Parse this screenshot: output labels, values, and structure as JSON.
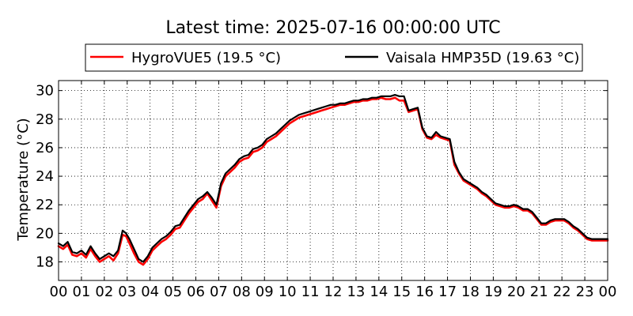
{
  "chart_data": {
    "type": "line",
    "title": "Latest time: 2025-07-16 00:00:00 UTC",
    "xlabel": "",
    "ylabel": "Temperature (°C)",
    "xlim": [
      0,
      24
    ],
    "ylim": [
      16.7,
      30.7
    ],
    "x_ticks": [
      "00",
      "01",
      "02",
      "03",
      "04",
      "05",
      "06",
      "07",
      "08",
      "09",
      "10",
      "11",
      "12",
      "13",
      "14",
      "15",
      "16",
      "17",
      "18",
      "19",
      "20",
      "21",
      "22",
      "23",
      "00"
    ],
    "y_ticks": [
      18,
      20,
      22,
      24,
      26,
      28,
      30
    ],
    "grid": true,
    "legend": "top",
    "series": [
      {
        "name": "HygroVUE5 (19.5 °C)",
        "color": "#ff0000",
        "x": [
          0,
          0.2,
          0.4,
          0.6,
          0.8,
          1.0,
          1.2,
          1.4,
          1.6,
          1.8,
          2.0,
          2.2,
          2.4,
          2.6,
          2.8,
          2.95,
          3.1,
          3.3,
          3.5,
          3.7,
          3.9,
          4.1,
          4.3,
          4.5,
          4.7,
          4.9,
          5.1,
          5.3,
          5.5,
          5.7,
          5.9,
          6.1,
          6.3,
          6.5,
          6.7,
          6.9,
          7.1,
          7.3,
          7.5,
          7.7,
          7.9,
          8.1,
          8.3,
          8.5,
          8.7,
          8.9,
          9.1,
          9.3,
          9.5,
          9.7,
          9.9,
          10.1,
          10.3,
          10.5,
          10.7,
          10.9,
          11.1,
          11.3,
          11.5,
          11.7,
          11.9,
          12.1,
          12.3,
          12.5,
          12.7,
          12.9,
          13.1,
          13.3,
          13.5,
          13.7,
          13.9,
          14.1,
          14.3,
          14.5,
          14.7,
          14.9,
          15.1,
          15.3,
          15.5,
          15.7,
          15.9,
          16.1,
          16.3,
          16.5,
          16.7,
          16.9,
          17.1,
          17.3,
          17.5,
          17.7,
          17.9,
          18.1,
          18.3,
          18.5,
          18.7,
          18.9,
          19.1,
          19.3,
          19.5,
          19.7,
          19.9,
          20.1,
          20.3,
          20.5,
          20.7,
          20.9,
          21.1,
          21.3,
          21.5,
          21.7,
          21.9,
          22.1,
          22.3,
          22.5,
          22.7,
          22.9,
          23.1,
          23.3,
          23.5,
          23.7,
          23.9,
          24.0
        ],
        "values": [
          19.1,
          18.9,
          19.2,
          18.5,
          18.4,
          18.6,
          18.3,
          18.9,
          18.4,
          18.0,
          18.2,
          18.4,
          18.1,
          18.6,
          19.9,
          19.8,
          19.3,
          18.6,
          18.0,
          17.8,
          18.2,
          18.8,
          19.1,
          19.4,
          19.6,
          19.9,
          20.3,
          20.4,
          20.9,
          21.4,
          21.8,
          22.2,
          22.4,
          22.8,
          22.3,
          21.8,
          23.3,
          24.0,
          24.3,
          24.6,
          25.0,
          25.2,
          25.3,
          25.7,
          25.8,
          26.0,
          26.4,
          26.6,
          26.8,
          27.1,
          27.4,
          27.7,
          27.9,
          28.1,
          28.2,
          28.3,
          28.4,
          28.5,
          28.6,
          28.7,
          28.8,
          28.9,
          29.0,
          29.0,
          29.1,
          29.2,
          29.2,
          29.3,
          29.3,
          29.4,
          29.4,
          29.5,
          29.4,
          29.4,
          29.5,
          29.3,
          29.3,
          28.5,
          28.6,
          28.7,
          27.3,
          26.7,
          26.6,
          26.9,
          26.7,
          26.6,
          26.5,
          24.8,
          24.2,
          23.7,
          23.5,
          23.3,
          23.1,
          22.8,
          22.6,
          22.3,
          22.0,
          21.9,
          21.8,
          21.8,
          21.9,
          21.8,
          21.6,
          21.6,
          21.4,
          21.0,
          20.6,
          20.6,
          20.8,
          20.9,
          20.9,
          20.9,
          20.7,
          20.4,
          20.2,
          19.9,
          19.6,
          19.5,
          19.5,
          19.5,
          19.5,
          19.5
        ]
      },
      {
        "name": "Vaisala HMP35D (19.63 °C)",
        "color": "#000000",
        "x": [
          0,
          0.2,
          0.4,
          0.6,
          0.8,
          1.0,
          1.2,
          1.4,
          1.6,
          1.8,
          2.0,
          2.2,
          2.4,
          2.6,
          2.8,
          2.95,
          3.1,
          3.3,
          3.5,
          3.7,
          3.9,
          4.1,
          4.3,
          4.5,
          4.7,
          4.9,
          5.1,
          5.3,
          5.5,
          5.7,
          5.9,
          6.1,
          6.3,
          6.5,
          6.7,
          6.9,
          7.1,
          7.3,
          7.5,
          7.7,
          7.9,
          8.1,
          8.3,
          8.5,
          8.7,
          8.9,
          9.1,
          9.3,
          9.5,
          9.7,
          9.9,
          10.1,
          10.3,
          10.5,
          10.7,
          10.9,
          11.1,
          11.3,
          11.5,
          11.7,
          11.9,
          12.1,
          12.3,
          12.5,
          12.7,
          12.9,
          13.1,
          13.3,
          13.5,
          13.7,
          13.9,
          14.1,
          14.3,
          14.5,
          14.7,
          14.9,
          15.1,
          15.3,
          15.5,
          15.7,
          15.9,
          16.1,
          16.3,
          16.5,
          16.7,
          16.9,
          17.1,
          17.3,
          17.5,
          17.7,
          17.9,
          18.1,
          18.3,
          18.5,
          18.7,
          18.9,
          19.1,
          19.3,
          19.5,
          19.7,
          19.9,
          20.1,
          20.3,
          20.5,
          20.7,
          20.9,
          21.1,
          21.3,
          21.5,
          21.7,
          21.9,
          22.1,
          22.3,
          22.5,
          22.7,
          22.9,
          23.1,
          23.3,
          23.5,
          23.7,
          23.9,
          24.0
        ],
        "values": [
          19.3,
          19.1,
          19.4,
          18.7,
          18.6,
          18.8,
          18.5,
          19.1,
          18.6,
          18.2,
          18.4,
          18.6,
          18.4,
          18.8,
          20.2,
          20.0,
          19.6,
          18.9,
          18.2,
          18.0,
          18.4,
          19.0,
          19.3,
          19.6,
          19.8,
          20.1,
          20.5,
          20.6,
          21.1,
          21.6,
          22.0,
          22.4,
          22.6,
          22.9,
          22.5,
          22.0,
          23.5,
          24.2,
          24.5,
          24.8,
          25.2,
          25.4,
          25.5,
          25.9,
          26.0,
          26.2,
          26.6,
          26.8,
          27.0,
          27.3,
          27.6,
          27.9,
          28.1,
          28.3,
          28.4,
          28.5,
          28.6,
          28.7,
          28.8,
          28.9,
          29.0,
          29.0,
          29.1,
          29.1,
          29.2,
          29.3,
          29.3,
          29.4,
          29.4,
          29.5,
          29.5,
          29.6,
          29.6,
          29.6,
          29.7,
          29.6,
          29.6,
          28.6,
          28.7,
          28.8,
          27.4,
          26.8,
          26.7,
          27.1,
          26.8,
          26.7,
          26.6,
          25.0,
          24.3,
          23.8,
          23.6,
          23.4,
          23.2,
          22.9,
          22.7,
          22.4,
          22.1,
          22.0,
          21.9,
          21.9,
          22.0,
          21.9,
          21.7,
          21.7,
          21.5,
          21.1,
          20.7,
          20.7,
          20.9,
          21.0,
          21.0,
          21.0,
          20.8,
          20.5,
          20.3,
          20.0,
          19.7,
          19.6,
          19.6,
          19.6,
          19.6,
          19.6
        ]
      }
    ]
  }
}
